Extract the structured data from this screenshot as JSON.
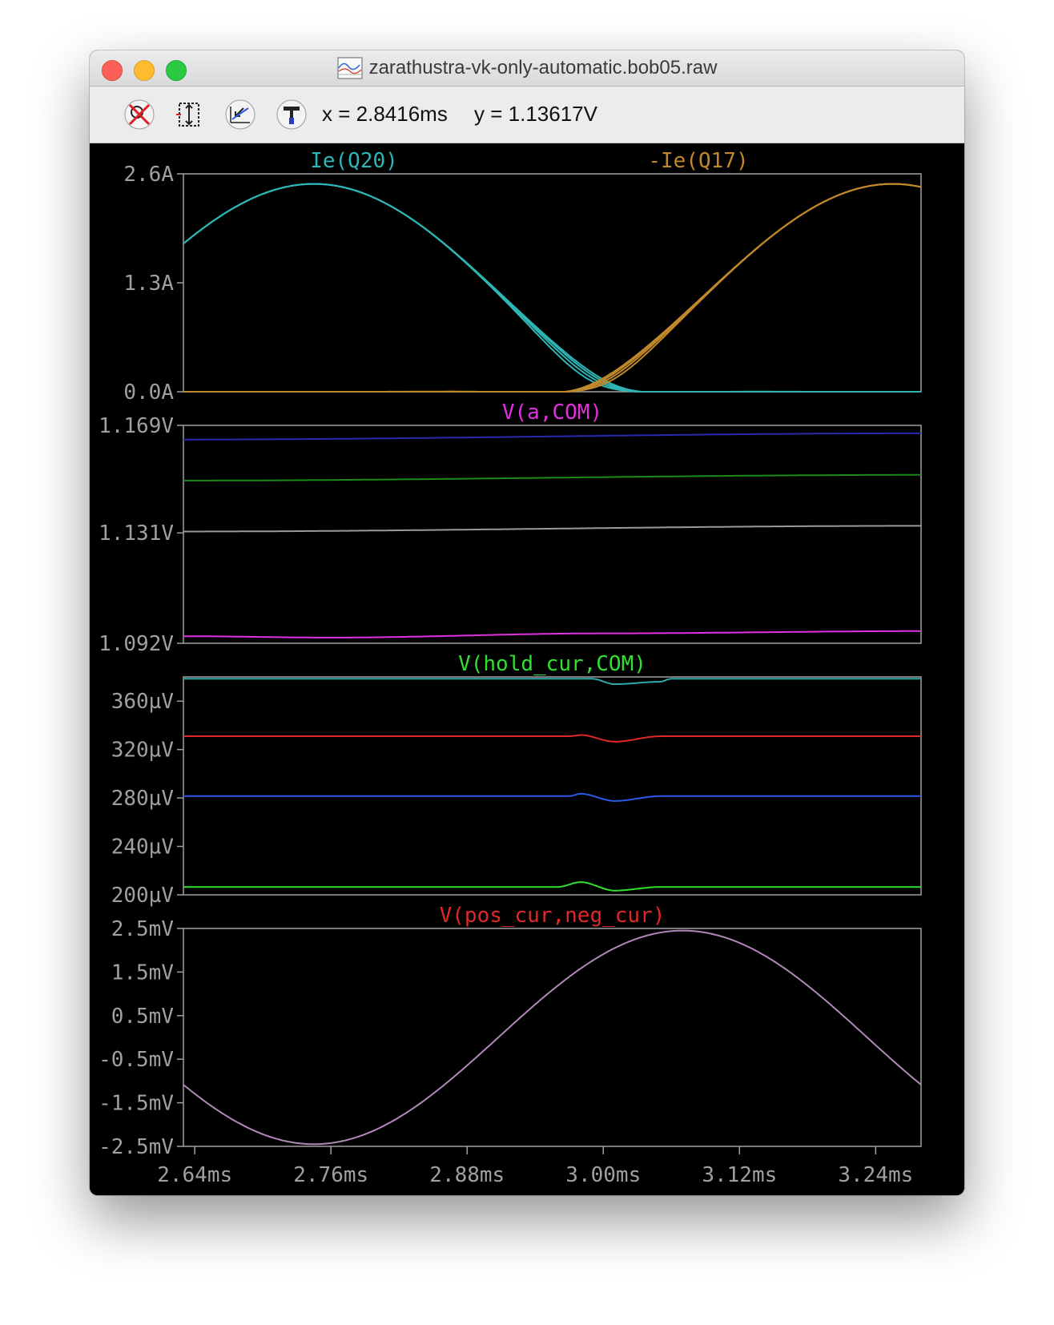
{
  "window": {
    "title": "zarathustra-vk-only-automatic.bob05.raw"
  },
  "toolbar": {
    "buttons": [
      {
        "name": "autorange-icon"
      },
      {
        "name": "zoom-extents-icon"
      },
      {
        "name": "zoom-back-icon"
      },
      {
        "name": "pick-trace-icon"
      }
    ],
    "cursor_x": "x = 2.8416ms",
    "cursor_y": "y = 1.13617V"
  },
  "colors": {
    "background": "#000000",
    "frame": "#a0a0a0",
    "tick_text": "#a0a0a0",
    "cyan": "#2fb5b5",
    "orange": "#c0882a",
    "magenta": "#e030e0",
    "green": "#30e030",
    "red": "#e02828",
    "navy": "#2828b0",
    "darkgreen": "#1a8a1a",
    "gray": "#9a9a9a",
    "teal": "#30a8a8",
    "blue": "#2a5ae8",
    "lilac": "#b088b8"
  },
  "xaxis": {
    "range": [
      2.63,
      3.28
    ],
    "tick_values": [
      2.64,
      2.76,
      2.88,
      3.0,
      3.12,
      3.24
    ],
    "tick_labels": [
      "2.64ms",
      "2.76ms",
      "2.88ms",
      "3.00ms",
      "3.12ms",
      "3.24ms"
    ]
  },
  "chart_data": [
    {
      "type": "line",
      "ylim": [
        0,
        2.6
      ],
      "yticks": [
        0.0,
        1.3,
        2.6
      ],
      "ytick_labels": [
        "0.0A",
        "1.3A",
        "2.6A"
      ],
      "series": [
        {
          "name": "Ie(Q20)",
          "color": "cyan",
          "curve": "Ie(Q20)",
          "points": [
            [
              2.63,
              1.92
            ],
            [
              2.74,
              2.48
            ],
            [
              2.86,
              1.85
            ],
            [
              2.93,
              0.9
            ],
            [
              2.98,
              0.35
            ],
            [
              3.04,
              0.08
            ],
            [
              3.12,
              0.01
            ],
            [
              3.28,
              0.0
            ]
          ]
        },
        {
          "name": "-Ie(Q17)",
          "color": "orange",
          "curve": "-Ie(Q17)",
          "points": [
            [
              2.63,
              0.0
            ],
            [
              2.86,
              0.0
            ],
            [
              2.96,
              0.08
            ],
            [
              3.01,
              0.35
            ],
            [
              3.07,
              1.0
            ],
            [
              3.15,
              1.95
            ],
            [
              3.23,
              2.48
            ],
            [
              3.28,
              2.35
            ]
          ]
        }
      ]
    },
    {
      "type": "line",
      "title": "V(a,COM)",
      "ylim": [
        1.092,
        1.169
      ],
      "yticks": [
        1.092,
        1.131,
        1.169
      ],
      "ytick_labels": [
        "1.092V",
        "1.131V",
        "1.169V"
      ],
      "series": [
        {
          "color": "navy",
          "points": [
            [
              2.63,
              1.164
            ],
            [
              3.28,
              1.1662
            ]
          ]
        },
        {
          "color": "darkgreen",
          "points": [
            [
              2.63,
              1.1495
            ],
            [
              3.28,
              1.1515
            ]
          ]
        },
        {
          "color": "gray",
          "points": [
            [
              2.63,
              1.1315
            ],
            [
              3.28,
              1.1335
            ]
          ]
        },
        {
          "color": "magenta",
          "points": [
            [
              2.63,
              1.0945
            ],
            [
              2.76,
              1.094
            ],
            [
              3.0,
              1.0955
            ],
            [
              3.28,
              1.0963
            ]
          ]
        }
      ]
    },
    {
      "type": "line",
      "title": "V(hold_cur,COM)",
      "ylim": [
        200,
        380
      ],
      "yticks": [
        200,
        240,
        280,
        320,
        360
      ],
      "ytick_labels": [
        "200µV",
        "240µV",
        "280µV",
        "320µV",
        "360µV"
      ],
      "series": [
        {
          "color": "teal",
          "points": [
            [
              2.63,
              378.5
            ],
            [
              2.99,
              378.5
            ],
            [
              3.01,
              374.0
            ],
            [
              3.05,
              376.0
            ],
            [
              3.06,
              378.5
            ],
            [
              3.28,
              378.5
            ]
          ]
        },
        {
          "color": "red",
          "points": [
            [
              2.63,
              331.0
            ],
            [
              2.97,
              331.0
            ],
            [
              2.98,
              332.0
            ],
            [
              3.01,
              326.5
            ],
            [
              3.05,
              331.0
            ],
            [
              3.28,
              331.0
            ]
          ]
        },
        {
          "color": "blue",
          "points": [
            [
              2.63,
              281.5
            ],
            [
              2.97,
              281.5
            ],
            [
              2.98,
              283.5
            ],
            [
              3.01,
              277.5
            ],
            [
              3.05,
              281.5
            ],
            [
              3.28,
              281.5
            ]
          ]
        },
        {
          "color": "green",
          "points": [
            [
              2.63,
              206.5
            ],
            [
              2.96,
              206.5
            ],
            [
              2.98,
              210.5
            ],
            [
              3.01,
              203.5
            ],
            [
              3.05,
              206.5
            ],
            [
              3.28,
              206.5
            ]
          ]
        }
      ]
    },
    {
      "type": "line",
      "title": "V(pos_cur,neg_cur)",
      "ylim": [
        -2.5,
        2.5
      ],
      "yticks": [
        -2.5,
        -1.5,
        -0.5,
        0.5,
        1.5,
        2.5
      ],
      "ytick_labels": [
        "-2.5mV",
        "-1.5mV",
        "-0.5mV",
        "0.5mV",
        "1.5mV",
        "2.5mV"
      ],
      "series": [
        {
          "color": "lilac",
          "curve": "sine",
          "amplitude": 2.45,
          "period": 0.65,
          "min_at": 2.745
        }
      ]
    }
  ]
}
